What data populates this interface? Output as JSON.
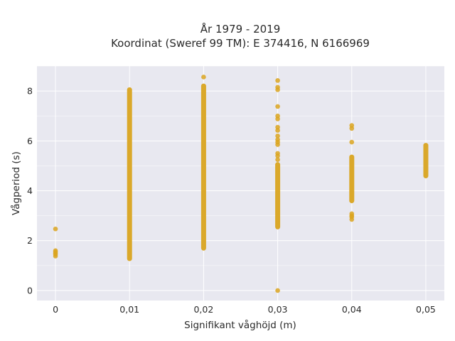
{
  "chart_data": {
    "type": "scatter",
    "title": "År 1979 - 2019",
    "subtitle": "Koordinat (Sweref 99 TM): E 374416, N 6166969",
    "xlabel": "Signifikant våghöjd (m)",
    "ylabel": "Vågperiod (s)",
    "xlim": [
      -0.0025,
      0.0525
    ],
    "ylim": [
      -0.4,
      9.0
    ],
    "x_ticks": [
      0,
      0.01,
      0.02,
      0.03,
      0.04,
      0.05
    ],
    "x_tick_labels": [
      "0",
      "0,01",
      "0,02",
      "0,03",
      "0,04",
      "0,05"
    ],
    "y_ticks": [
      0,
      2,
      4,
      6,
      8
    ],
    "y_tick_labels": [
      "0",
      "2",
      "4",
      "6",
      "8"
    ],
    "grid": true,
    "legend": false,
    "colors": {
      "marker": "#DAA520",
      "background": "#E8E8F0",
      "grid": "#ffffff"
    },
    "series": [
      {
        "points": [
          {
            "x": 0,
            "y": 1.38
          },
          {
            "x": 0,
            "y": 1.45
          },
          {
            "x": 0,
            "y": 1.5
          },
          {
            "x": 0,
            "y": 1.55
          },
          {
            "x": 0,
            "y": 1.6
          },
          {
            "x": 0,
            "y": 2.47
          },
          {
            "x": 0.02,
            "y": 8.56
          },
          {
            "x": 0.03,
            "y": 0.0
          },
          {
            "x": 0.03,
            "y": 8.42
          },
          {
            "x": 0.03,
            "y": 8.15
          },
          {
            "x": 0.03,
            "y": 8.05
          },
          {
            "x": 0.03,
            "y": 7.38
          },
          {
            "x": 0.03,
            "y": 7.0
          },
          {
            "x": 0.03,
            "y": 6.88
          },
          {
            "x": 0.03,
            "y": 6.55
          },
          {
            "x": 0.03,
            "y": 6.42
          },
          {
            "x": 0.03,
            "y": 6.2
          },
          {
            "x": 0.03,
            "y": 6.05
          },
          {
            "x": 0.03,
            "y": 5.95
          },
          {
            "x": 0.03,
            "y": 5.85
          },
          {
            "x": 0.03,
            "y": 5.5
          },
          {
            "x": 0.03,
            "y": 5.4
          },
          {
            "x": 0.03,
            "y": 5.25
          },
          {
            "x": 0.04,
            "y": 6.62
          },
          {
            "x": 0.04,
            "y": 6.5
          },
          {
            "x": 0.04,
            "y": 5.95
          },
          {
            "x": 0.04,
            "y": 3.08
          },
          {
            "x": 0.04,
            "y": 3.0
          },
          {
            "x": 0.04,
            "y": 2.95
          },
          {
            "x": 0.04,
            "y": 2.85
          }
        ],
        "ranges": [
          {
            "x": 0.01,
            "y_min": 1.28,
            "y_max": 8.05
          },
          {
            "x": 0.02,
            "y_min": 1.7,
            "y_max": 8.2
          },
          {
            "x": 0.03,
            "y_min": 2.55,
            "y_max": 5.05
          },
          {
            "x": 0.04,
            "y_min": 3.6,
            "y_max": 5.35
          },
          {
            "x": 0.05,
            "y_min": 4.6,
            "y_max": 5.82
          }
        ]
      }
    ]
  }
}
